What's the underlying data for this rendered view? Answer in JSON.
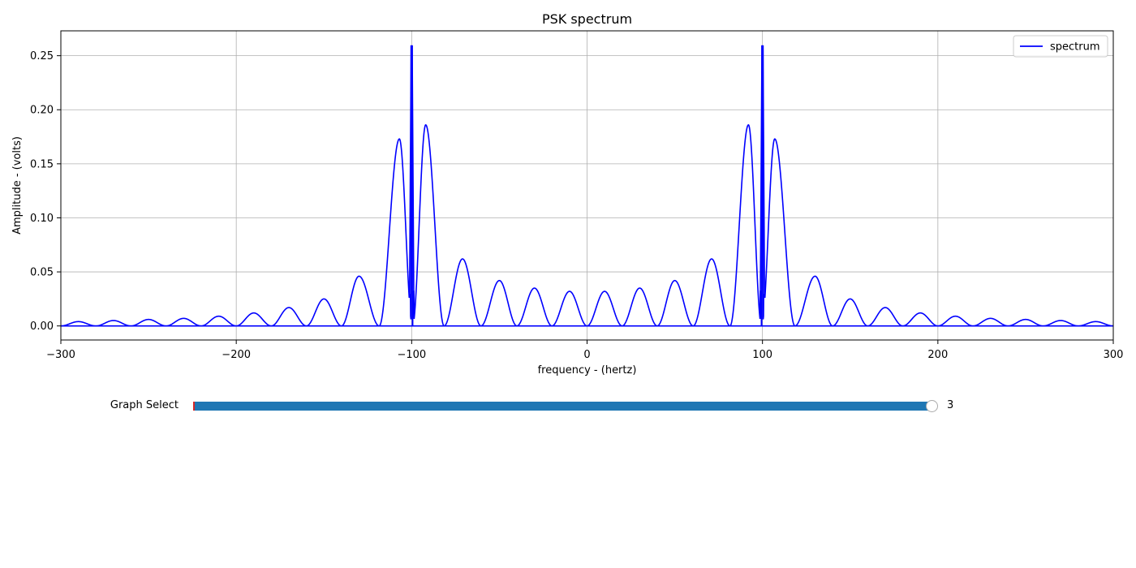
{
  "chart_data": {
    "type": "line",
    "title": "PSK spectrum",
    "xlabel": "frequency - (hertz)",
    "ylabel": "Amplitude - (volts)",
    "xlim": [
      -300,
      300
    ],
    "ylim": [
      -0.013,
      0.273
    ],
    "x_ticks": [
      -300,
      -200,
      -100,
      0,
      100,
      200,
      300
    ],
    "x_tick_labels": [
      "−300",
      "−200",
      "−100",
      "0",
      "100",
      "200",
      "300"
    ],
    "y_ticks": [
      0.0,
      0.05,
      0.1,
      0.15,
      0.2,
      0.25
    ],
    "y_tick_labels": [
      "0.00",
      "0.05",
      "0.10",
      "0.15",
      "0.20",
      "0.25"
    ],
    "grid": true,
    "legend_position": "top-right",
    "color": "#0000ff",
    "series": [
      {
        "name": "spectrum",
        "carrier_hz": 100,
        "carrier_peak": 0.259,
        "lobe_width_hz": 20,
        "lobes": [
          {
            "f": 10,
            "a": 0.032
          },
          {
            "f": 30,
            "a": 0.035
          },
          {
            "f": 50,
            "a": 0.042
          },
          {
            "f": 71,
            "a": 0.062
          },
          {
            "f": 92,
            "a": 0.186
          },
          {
            "f": 107,
            "a": 0.173
          },
          {
            "f": 130,
            "a": 0.046
          },
          {
            "f": 150,
            "a": 0.025
          },
          {
            "f": 170,
            "a": 0.017
          },
          {
            "f": 190,
            "a": 0.012
          },
          {
            "f": 210,
            "a": 0.009
          },
          {
            "f": 230,
            "a": 0.007
          },
          {
            "f": 250,
            "a": 0.006
          },
          {
            "f": 270,
            "a": 0.005
          },
          {
            "f": 290,
            "a": 0.004
          }
        ],
        "notch_minima": [
          {
            "f": 99,
            "a": 0.032
          },
          {
            "f": 101,
            "a": 0.029
          }
        ]
      }
    ]
  },
  "slider": {
    "label": "Graph Select",
    "value": "3",
    "min": 0,
    "max": 3,
    "current": 3
  }
}
